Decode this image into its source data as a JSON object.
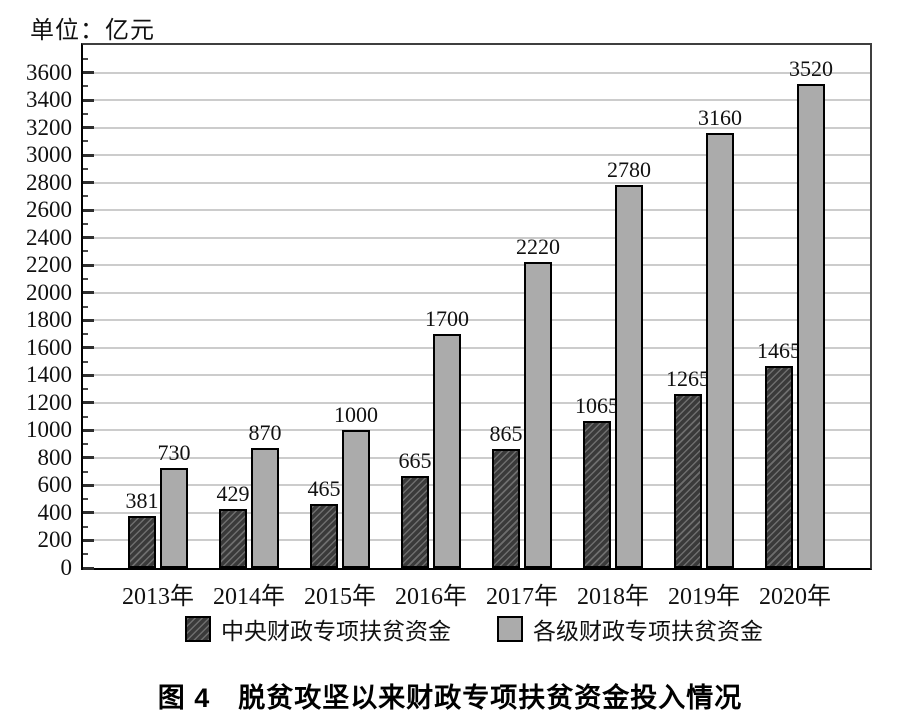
{
  "chart_data": {
    "type": "bar",
    "unit_label": "单位：亿元",
    "title": "图 4　脱贫攻坚以来财政专项扶贫资金投入情况",
    "categories": [
      "2013年",
      "2014年",
      "2015年",
      "2016年",
      "2017年",
      "2018年",
      "2019年",
      "2020年"
    ],
    "series": [
      {
        "name": "中央财政专项扶贫资金",
        "style": "dark-hatched",
        "color": "#3a3a3a",
        "values": [
          381,
          429,
          465,
          665,
          865,
          1065,
          1265,
          1465
        ]
      },
      {
        "name": "各级财政专项扶贫资金",
        "style": "solid-gray",
        "color": "#ababab",
        "values": [
          730,
          870,
          1000,
          1700,
          2220,
          2780,
          3160,
          3520
        ]
      }
    ],
    "ylim": [
      0,
      3800
    ],
    "ytick_step": 200,
    "ytick_max": 3600,
    "yminor_step": 100,
    "grid": "horizontal-major",
    "gridline_color": "#cccccc",
    "value_labels": true,
    "legend_position": "bottom",
    "xlabel": "",
    "ylabel": ""
  }
}
